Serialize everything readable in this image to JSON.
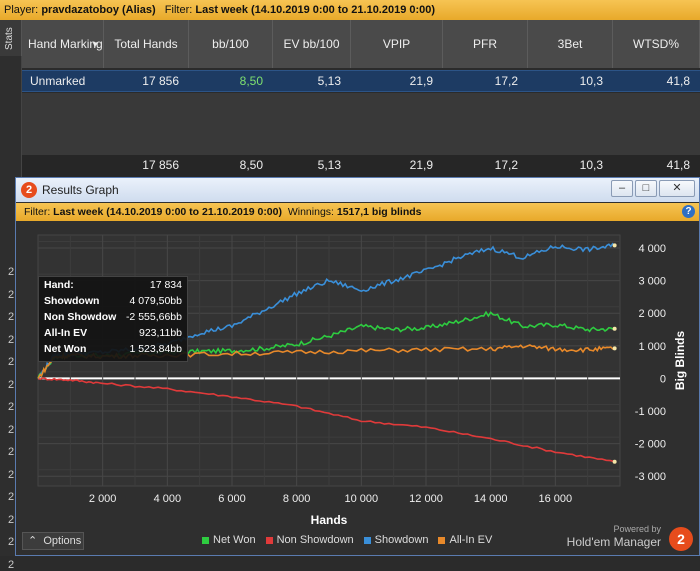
{
  "filterbar": {
    "player_label": "Player:",
    "player_value": "pravdazatoboy (Alias)",
    "filter_label": "Filter:",
    "filter_value": "Last week (14.10.2019 0:00 to 21.10.2019 0:00)"
  },
  "stats_tab_label": "Stats",
  "stats_table": {
    "columns": [
      "Hand Marking",
      "Total Hands",
      "bb/100",
      "EV bb/100",
      "VPIP",
      "PFR",
      "3Bet",
      "WTSD%"
    ],
    "row": [
      "Unmarked",
      "17 856",
      "8,50",
      "5,13",
      "21,9",
      "17,2",
      "10,3",
      "41,8"
    ],
    "totals": [
      "",
      "17 856",
      "8,50",
      "5,13",
      "21,9",
      "17,2",
      "10,3",
      "41,8"
    ]
  },
  "left_digits": [
    "2",
    "2",
    "2",
    "2",
    "2",
    "2",
    "2",
    "2",
    "2",
    "2",
    "2",
    "2",
    "2",
    "2"
  ],
  "window": {
    "title": "Results Graph",
    "app_icon": "2",
    "filter_label": "Filter:",
    "filter_value": "Last week (14.10.2019 0:00 to 21.10.2019 0:00)",
    "winnings_label": "Winnings:",
    "winnings_value": "1517,1 big blinds",
    "options_label": "Options",
    "powered_by": "Powered by",
    "brand": "Hold'em Manager",
    "brand_logo": "2"
  },
  "statbox": [
    {
      "label": "Hand:",
      "value": "17 834"
    },
    {
      "label": "Showdown",
      "value": "4 079,50bb"
    },
    {
      "label": "Non Showdow",
      "value": "-2 555,66bb"
    },
    {
      "label": "All-In EV",
      "value": "923,11bb"
    },
    {
      "label": "Net Won",
      "value": "1 523,84bb"
    }
  ],
  "chart_data": {
    "type": "line",
    "xlabel": "Hands",
    "ylabel": "Big Blinds",
    "xlim": [
      0,
      18000
    ],
    "ylim": [
      -3300,
      4400
    ],
    "x_ticks": [
      "2 000",
      "4 000",
      "6 000",
      "8 000",
      "10 000",
      "12 000",
      "14 000",
      "16 000"
    ],
    "y_ticks": [
      "4 000",
      "3 000",
      "2 000",
      "1 000",
      "0",
      "-1 000",
      "-2 000",
      "-3 000"
    ],
    "grid": true,
    "legend_position": "bottom",
    "series": [
      {
        "name": "Net Won",
        "color": "#2ecc40",
        "x": [
          0,
          500,
          1000,
          2000,
          3000,
          4000,
          5000,
          6000,
          7000,
          8000,
          9000,
          10000,
          11000,
          12000,
          13000,
          14000,
          15000,
          16000,
          17000,
          17834
        ],
        "y": [
          0,
          650,
          720,
          700,
          760,
          800,
          830,
          850,
          920,
          1050,
          1300,
          1600,
          1500,
          1550,
          1750,
          2000,
          1600,
          1650,
          1500,
          1524
        ]
      },
      {
        "name": "Non Showdown",
        "color": "#e03a3a",
        "x": [
          0,
          1000,
          2000,
          4000,
          6000,
          8000,
          10000,
          12000,
          14000,
          16000,
          17834
        ],
        "y": [
          0,
          -50,
          -150,
          -320,
          -560,
          -850,
          -1300,
          -1500,
          -1850,
          -2250,
          -2556
        ]
      },
      {
        "name": "Showdown",
        "color": "#3a8fd9",
        "x": [
          0,
          500,
          1000,
          2000,
          3000,
          4000,
          5000,
          6000,
          7000,
          8000,
          9000,
          10000,
          11000,
          12000,
          13000,
          14000,
          15000,
          16000,
          17000,
          17834
        ],
        "y": [
          0,
          700,
          750,
          800,
          900,
          1050,
          1400,
          1600,
          2100,
          2600,
          3000,
          2700,
          3000,
          3300,
          3700,
          4000,
          3700,
          4050,
          3950,
          4080
        ]
      },
      {
        "name": "All-In EV",
        "color": "#e8892a",
        "x": [
          0,
          500,
          1000,
          2000,
          3000,
          4000,
          6000,
          8000,
          10000,
          12000,
          14000,
          15000,
          16000,
          17000,
          17834
        ],
        "y": [
          0,
          650,
          700,
          680,
          700,
          720,
          760,
          800,
          850,
          880,
          900,
          1000,
          900,
          880,
          923
        ]
      }
    ]
  }
}
